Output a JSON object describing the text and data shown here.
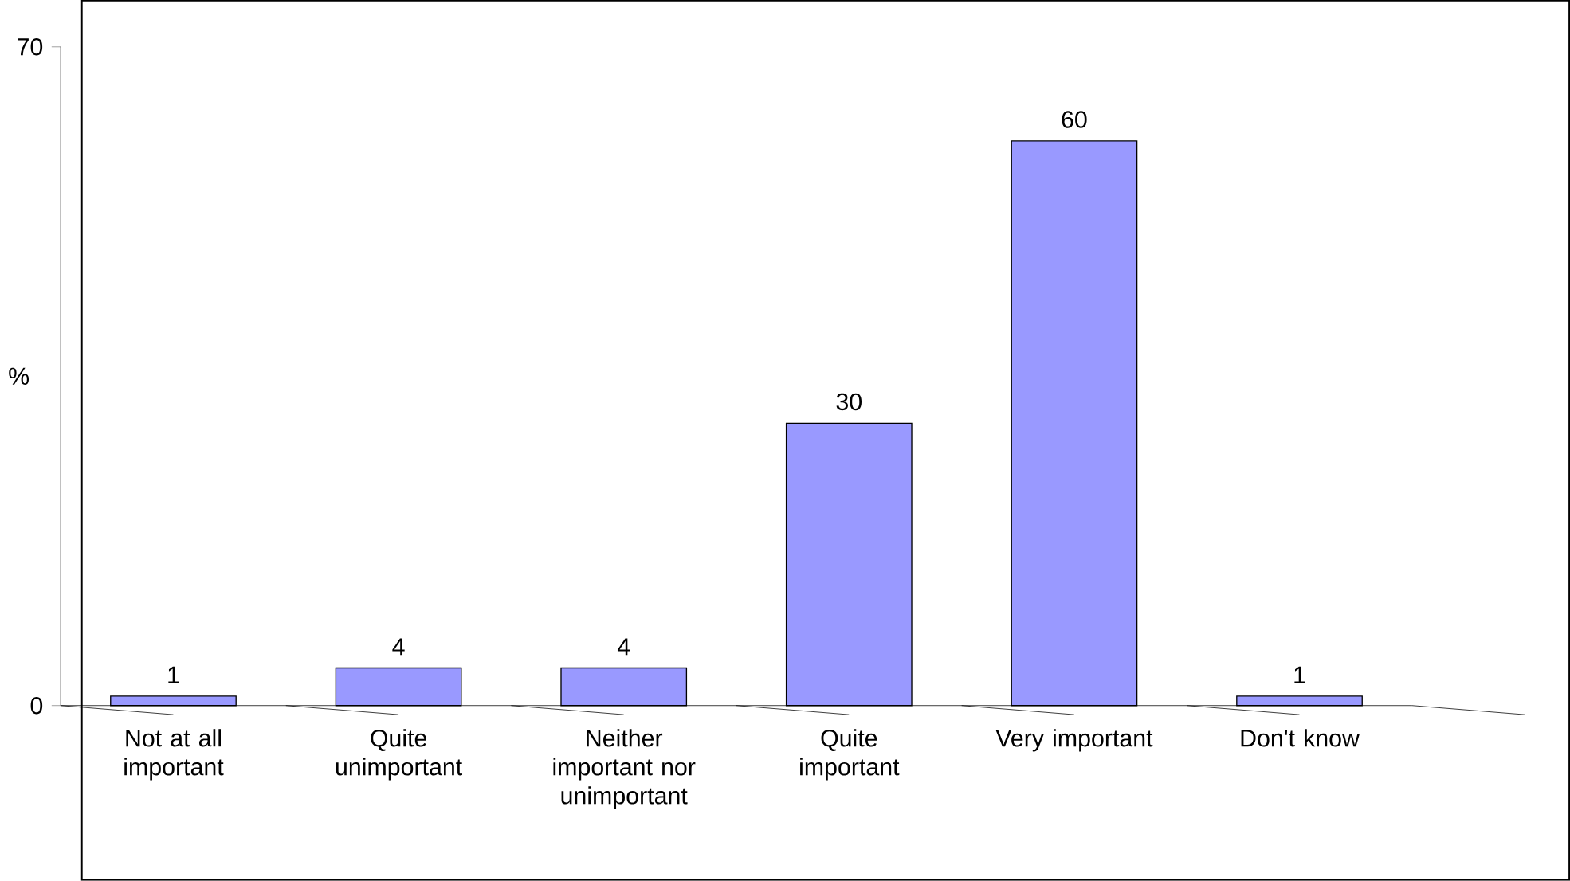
{
  "chart_data": {
    "type": "bar",
    "ylabel": "%",
    "categories": [
      "Not at all important",
      "Quite unimportant",
      "Neither important nor unimportant",
      "Quite important",
      "Very important",
      "Don't know"
    ],
    "values": [
      1,
      4,
      4,
      30,
      60,
      1
    ],
    "color": "#9999ff",
    "ylim": [
      0,
      70
    ],
    "yticks": [
      0,
      70
    ],
    "data_labels": true
  }
}
